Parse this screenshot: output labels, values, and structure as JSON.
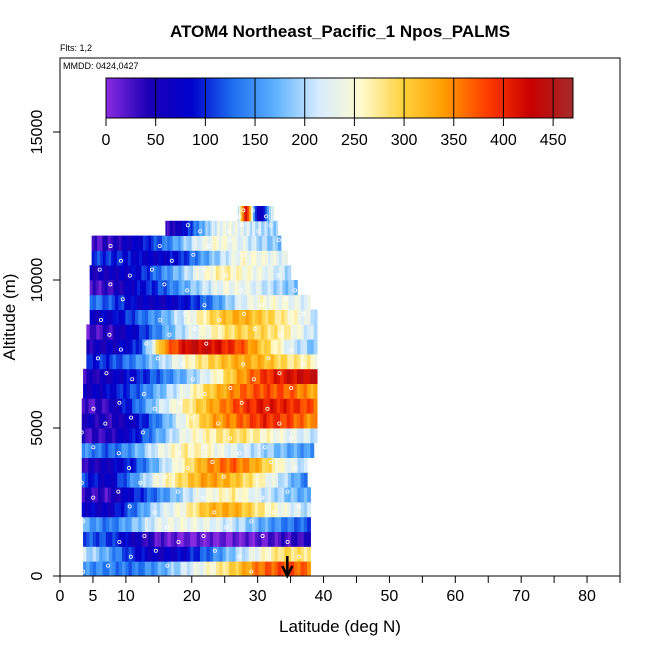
{
  "chart_data": {
    "type": "heatmap",
    "title": "ATOM4 Northeast_Pacific_1 Npos_PALMS",
    "flights_note": "Flts: 1,2",
    "date_note": "MMDD: 0424,0427",
    "xlabel": "Latitude (deg N)",
    "ylabel": "Altitude (m)",
    "xlim": [
      0,
      85
    ],
    "ylim": [
      0,
      17500
    ],
    "x_major_ticks": [
      0,
      5,
      10,
      20,
      30,
      40,
      50,
      60,
      70,
      80
    ],
    "x_minor_ticks": [
      15,
      25,
      35,
      45,
      55,
      65,
      75,
      85
    ],
    "y_ticks": [
      0,
      5000,
      10000,
      15000
    ],
    "colorbar": {
      "min": 0,
      "max": 470,
      "ticks": [
        0,
        50,
        100,
        150,
        200,
        250,
        300,
        350,
        400,
        450
      ],
      "stops": [
        "#8a2be2",
        "#1c00b5",
        "#0000cd",
        "#1e6ff0",
        "#5fb2ff",
        "#d6ecff",
        "#fffbd0",
        "#ffd23c",
        "#ff9a00",
        "#ff3a00",
        "#c80000",
        "#a52a2a"
      ]
    },
    "profile_marker": {
      "latitude": 34.5,
      "direction": "descending"
    },
    "layers": [
      {
        "alt": 250,
        "x0": 3.5,
        "x1": 38,
        "v": [
          150,
          140,
          130,
          160,
          210,
          250,
          300,
          360,
          380,
          360
        ]
      },
      {
        "alt": 750,
        "x0": 3.5,
        "x1": 38,
        "v": [
          210,
          160,
          90,
          60,
          80,
          130,
          190,
          240,
          290,
          280
        ]
      },
      {
        "alt": 1250,
        "x0": 3.5,
        "x1": 38,
        "v": [
          120,
          110,
          60,
          20,
          10,
          10,
          10,
          15,
          30,
          40
        ]
      },
      {
        "alt": 1750,
        "x0": 3.5,
        "x1": 38,
        "v": [
          170,
          130,
          180,
          230,
          240,
          230,
          210,
          170,
          140,
          120
        ]
      },
      {
        "alt": 2250,
        "x0": 3.3,
        "x1": 38,
        "v": [
          80,
          60,
          130,
          210,
          250,
          320,
          330,
          280,
          240,
          200
        ]
      },
      {
        "alt": 2750,
        "x0": 3.3,
        "x1": 38,
        "v": [
          40,
          30,
          90,
          140,
          200,
          240,
          270,
          220,
          190,
          160
        ]
      },
      {
        "alt": 3250,
        "x0": 3.3,
        "x1": 37.5,
        "v": [
          110,
          60,
          150,
          240,
          290,
          340,
          320,
          270,
          210,
          140
        ]
      },
      {
        "alt": 3750,
        "x0": 3.3,
        "x1": 37.5,
        "v": [
          40,
          60,
          100,
          180,
          260,
          340,
          370,
          330,
          250,
          200
        ]
      },
      {
        "alt": 4250,
        "x0": 3.3,
        "x1": 38.5,
        "v": [
          150,
          120,
          160,
          230,
          270,
          250,
          220,
          200,
          170,
          150
        ]
      },
      {
        "alt": 4750,
        "x0": 3.3,
        "x1": 39,
        "v": [
          30,
          40,
          90,
          170,
          240,
          270,
          290,
          260,
          230,
          210
        ]
      },
      {
        "alt": 5250,
        "x0": 3.3,
        "x1": 39,
        "v": [
          60,
          40,
          70,
          150,
          250,
          330,
          360,
          400,
          380,
          340
        ]
      },
      {
        "alt": 5750,
        "x0": 3.3,
        "x1": 39,
        "v": [
          20,
          40,
          120,
          210,
          270,
          330,
          380,
          410,
          400,
          370
        ]
      },
      {
        "alt": 6250,
        "x0": 3.5,
        "x1": 39,
        "v": [
          60,
          80,
          120,
          180,
          240,
          310,
          360,
          380,
          370,
          330
        ]
      },
      {
        "alt": 6750,
        "x0": 3.5,
        "x1": 39,
        "v": [
          40,
          60,
          90,
          130,
          180,
          240,
          330,
          390,
          420,
          430
        ]
      },
      {
        "alt": 7250,
        "x0": 4,
        "x1": 39,
        "v": [
          90,
          110,
          150,
          200,
          260,
          300,
          330,
          320,
          280,
          260
        ]
      },
      {
        "alt": 7750,
        "x0": 4,
        "x1": 39,
        "v": [
          50,
          60,
          100,
          340,
          430,
          420,
          380,
          300,
          220,
          180
        ]
      },
      {
        "alt": 8250,
        "x0": 4,
        "x1": 39,
        "v": [
          20,
          40,
          90,
          160,
          220,
          260,
          300,
          290,
          260,
          200
        ]
      },
      {
        "alt": 8750,
        "x0": 4.5,
        "x1": 39,
        "v": [
          60,
          80,
          130,
          170,
          240,
          300,
          330,
          300,
          260,
          210
        ]
      },
      {
        "alt": 9250,
        "x0": 4.5,
        "x1": 38,
        "v": [
          140,
          110,
          70,
          60,
          90,
          140,
          210,
          250,
          240,
          220
        ]
      },
      {
        "alt": 9750,
        "x0": 4.5,
        "x1": 36,
        "v": [
          20,
          40,
          80,
          110,
          160,
          210,
          240,
          230,
          200,
          180
        ]
      },
      {
        "alt": 10250,
        "x0": 4.5,
        "x1": 35,
        "v": [
          50,
          60,
          80,
          130,
          180,
          240,
          270,
          250,
          230,
          200
        ]
      },
      {
        "alt": 10750,
        "x0": 4.8,
        "x1": 34.5,
        "v": [
          110,
          100,
          80,
          70,
          90,
          150,
          200,
          250,
          240,
          220
        ]
      },
      {
        "alt": 11250,
        "x0": 4.8,
        "x1": 33.5,
        "v": [
          20,
          40,
          70,
          110,
          160,
          220,
          250,
          230,
          200,
          180
        ]
      },
      {
        "alt": 11750,
        "x0": 16,
        "x1": 33,
        "v": [
          30,
          60,
          110,
          170,
          220,
          240,
          230,
          210,
          200,
          190
        ]
      },
      {
        "alt": 12250,
        "x0": 27,
        "x1": 32.5,
        "v": [
          200,
          330,
          430,
          330,
          150,
          60,
          60,
          120,
          200,
          230
        ]
      }
    ]
  }
}
